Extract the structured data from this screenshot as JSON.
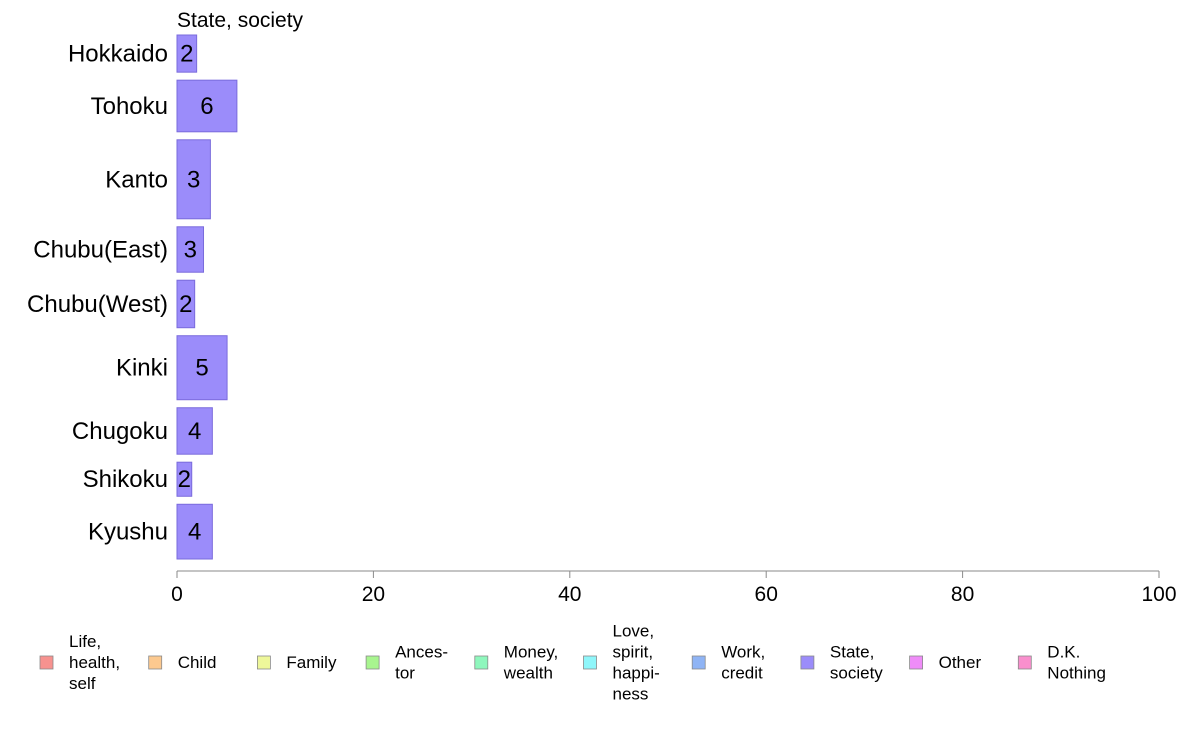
{
  "chart_data": {
    "type": "bar",
    "orientation": "horizontal",
    "title": "State, society",
    "categories": [
      "Hokkaido",
      "Tohoku",
      "Kanto",
      "Chubu(East)",
      "Chubu(West)",
      "Kinki",
      "Chugoku",
      "Shikoku",
      "Kyushu"
    ],
    "band_share": [
      0.72,
      1.0,
      1.53,
      0.88,
      0.92,
      1.24,
      0.9,
      0.66,
      1.06
    ],
    "values": [
      2.0,
      6.1,
      3.4,
      2.7,
      1.8,
      5.1,
      3.6,
      1.5,
      3.6
    ],
    "value_labels": [
      "2",
      "6",
      "3",
      "3",
      "2",
      "5",
      "4",
      "2",
      "4"
    ],
    "xlim": [
      0,
      100
    ],
    "xticks": [
      "0",
      "20",
      "40",
      "60",
      "80",
      "100"
    ],
    "series_color": "#9b8cfa",
    "legend_placement": "bottom",
    "legend": [
      {
        "lines": [
          "Life,",
          "health,",
          "self"
        ],
        "color": "#f7928f"
      },
      {
        "lines": [
          "Child"
        ],
        "color": "#fcc98f"
      },
      {
        "lines": [
          "Family"
        ],
        "color": "#eef79a"
      },
      {
        "lines": [
          "Ances-",
          "tor"
        ],
        "color": "#a8f58f"
      },
      {
        "lines": [
          "Money,",
          "wealth"
        ],
        "color": "#8ff7bd"
      },
      {
        "lines": [
          "Love,",
          "spirit,",
          "happi-",
          "ness"
        ],
        "color": "#8ff6fa"
      },
      {
        "lines": [
          "Work,",
          "credit"
        ],
        "color": "#8fb4f5"
      },
      {
        "lines": [
          "State,",
          "society"
        ],
        "color": "#9b8cfa"
      },
      {
        "lines": [
          "Other"
        ],
        "color": "#ef8cf8"
      },
      {
        "lines": [
          "D.K.",
          "Nothing"
        ],
        "color": "#f98fcd"
      }
    ]
  }
}
